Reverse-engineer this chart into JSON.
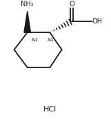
{
  "bg_color": "#ffffff",
  "line_color": "#1a1a1a",
  "line_width": 1.3,
  "nh2_label": "NH₂",
  "cooh_o_label": "O",
  "cooh_oh_label": "OH",
  "stereo1_label": "&1",
  "stereo2_label": "&1",
  "hcl_label": "HCl",
  "font_size_main": 7.0,
  "font_size_stereo": 5.0,
  "font_size_hcl": 8.0
}
